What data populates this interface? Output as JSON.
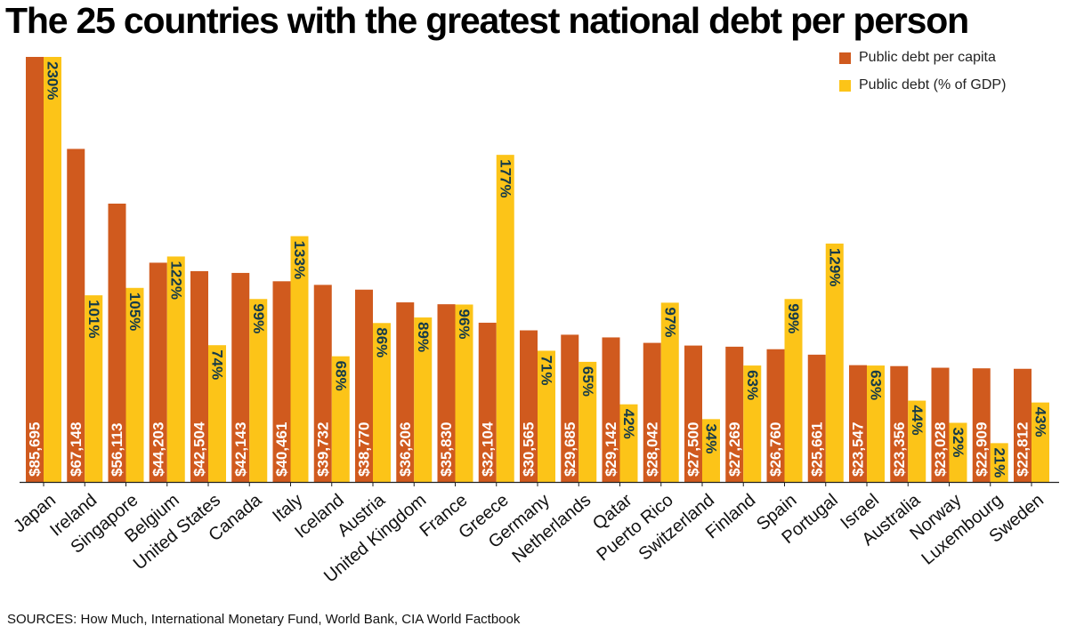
{
  "title": "The 25 countries with the greatest national debt per person",
  "legend": [
    {
      "label": "Public debt per capita",
      "color": "#d05a1e"
    },
    {
      "label": "Public debt (% of GDP)",
      "color": "#fcc418"
    }
  ],
  "sources": "SOURCES:  How Much, International Monetary Fund, World Bank, CIA World Factbook",
  "chart_data": {
    "type": "bar",
    "title": "The 25 countries with the greatest national debt per person",
    "categories": [
      "Japan",
      "Ireland",
      "Singapore",
      "Belgium",
      "United States",
      "Canada",
      "Italy",
      "Iceland",
      "Austria",
      "United Kingdom",
      "France",
      "Greece",
      "Germany",
      "Netherlands",
      "Qatar",
      "Puerto Rico",
      "Switzerland",
      "Finland",
      "Spain",
      "Portugal",
      "Israel",
      "Australia",
      "Norway",
      "Luxembourg",
      "Sweden"
    ],
    "series": [
      {
        "name": "Public debt per capita",
        "color": "#d05a1e",
        "values": [
          85695,
          67148,
          56113,
          44203,
          42504,
          42143,
          40461,
          39732,
          38770,
          36206,
          35830,
          32104,
          30565,
          29685,
          29142,
          28042,
          27500,
          27269,
          26760,
          25661,
          23547,
          23356,
          23028,
          22909,
          22812
        ],
        "labels": [
          "$85,695",
          "$67,148",
          "$56,113",
          "$44,203",
          "$42,504",
          "$42,143",
          "$40,461",
          "$39,732",
          "$38,770",
          "$36,206",
          "$35,830",
          "$32,104",
          "$30,565",
          "$29,685",
          "$29,142",
          "$28,042",
          "$27,500",
          "$27,269",
          "$26,760",
          "$25,661",
          "$23,547",
          "$23,356",
          "$23,028",
          "$22,909",
          "$22,812"
        ]
      },
      {
        "name": "Public debt (% of GDP)",
        "color": "#fcc418",
        "values": [
          230,
          101,
          105,
          122,
          74,
          99,
          133,
          68,
          86,
          89,
          96,
          177,
          71,
          65,
          42,
          97,
          34,
          63,
          99,
          129,
          63,
          44,
          32,
          21,
          43
        ],
        "labels": [
          "230%",
          "101%",
          "105%",
          "122%",
          "74%",
          "99%",
          "133%",
          "68%",
          "86%",
          "89%",
          "96%",
          "177%",
          "71%",
          "65%",
          "42%",
          "97%",
          "34%",
          "63%",
          "99%",
          "129%",
          "63%",
          "44%",
          "32%",
          "21%",
          "43%"
        ]
      }
    ],
    "xlabel": "",
    "ylabel": "",
    "grid": false,
    "legend_position": "top-right"
  }
}
